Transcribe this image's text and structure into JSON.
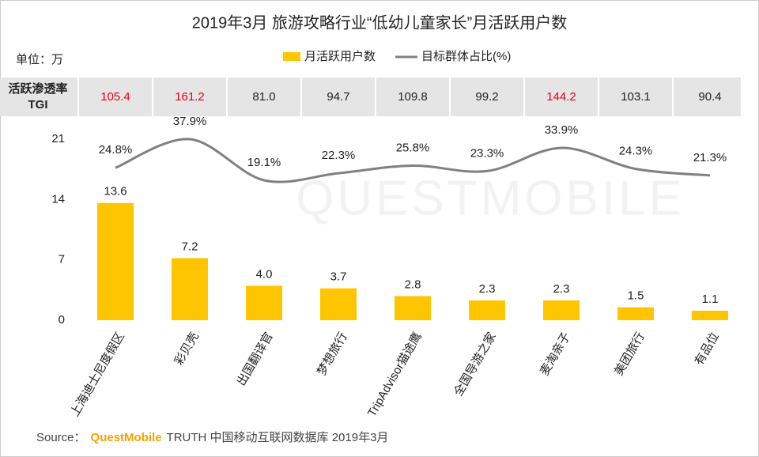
{
  "chart_data": {
    "type": "bar",
    "title": "2019年3月 旅游攻略行业“低幼儿童家长”月活跃用户数",
    "unit_label": "单位：万",
    "categories": [
      "上海迪士尼度假区",
      "彩贝壳",
      "出国翻译官",
      "梦想旅行",
      "TripAdvisor猫途鹰",
      "全国导游之家",
      "麦淘亲子",
      "美团旅行",
      "有品位"
    ],
    "series": [
      {
        "name": "月活跃用户数",
        "type": "bar",
        "color": "#ffc600",
        "values": [
          13.6,
          7.2,
          4.0,
          3.7,
          2.8,
          2.3,
          2.3,
          1.5,
          1.1
        ],
        "value_labels": [
          "13.6",
          "7.2",
          "4.0",
          "3.7",
          "2.8",
          "2.3",
          "2.3",
          "1.5",
          "1.1"
        ]
      },
      {
        "name": "目标群体占比(%)",
        "type": "line",
        "color": "#808080",
        "values": [
          24.8,
          37.9,
          19.1,
          22.3,
          25.8,
          23.3,
          33.9,
          24.3,
          21.3
        ],
        "value_labels": [
          "24.8%",
          "37.9%",
          "19.1%",
          "22.3%",
          "25.8%",
          "23.3%",
          "33.9%",
          "24.3%",
          "21.3%"
        ]
      }
    ],
    "ylim": [
      0,
      21
    ],
    "yticks": [
      0,
      7,
      14,
      21
    ],
    "tgi": {
      "label": [
        "活跃渗透率",
        "TGI"
      ],
      "values": [
        105.4,
        161.2,
        81.0,
        94.7,
        109.8,
        99.2,
        144.2,
        103.1,
        90.4
      ],
      "value_labels": [
        "105.4",
        "161.2",
        "81.0",
        "94.7",
        "109.8",
        "99.2",
        "144.2",
        "103.1",
        "90.4"
      ],
      "highlighted": [
        true,
        true,
        false,
        false,
        false,
        false,
        true,
        false,
        false
      ],
      "highlight_color": "#e60012"
    },
    "watermark": "QUESTMOBILE",
    "source": {
      "label": "Source：",
      "brand": "QuestMobile",
      "text": "TRUTH 中国移动互联网数据库 2019年3月"
    }
  }
}
